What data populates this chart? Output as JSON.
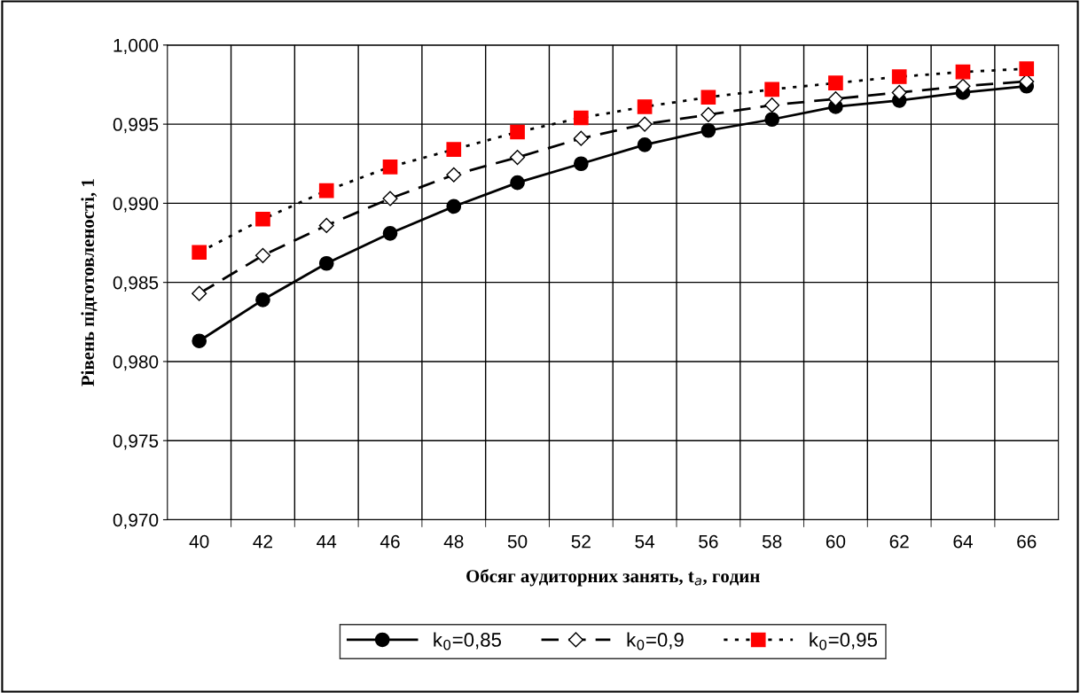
{
  "chart_data": {
    "type": "line",
    "xlabel": "Обсяг аудиторних занять, t$_{a}$, годин",
    "ylabel": "Рівень підготовленості, 1",
    "categories": [
      "40",
      "42",
      "44",
      "46",
      "48",
      "50",
      "52",
      "54",
      "56",
      "58",
      "60",
      "62",
      "64",
      "66"
    ],
    "ylim": [
      0.97,
      1.0
    ],
    "yticks": [
      {
        "value": 0.97,
        "label": "0,970"
      },
      {
        "value": 0.975,
        "label": "0,975"
      },
      {
        "value": 0.98,
        "label": "0,980"
      },
      {
        "value": 0.985,
        "label": "0,985"
      },
      {
        "value": 0.99,
        "label": "0,990"
      },
      {
        "value": 0.995,
        "label": "0,995"
      },
      {
        "value": 1.0,
        "label": "1,000"
      }
    ],
    "grid": true,
    "legend": "bottom",
    "series": [
      {
        "name": "k$_{0}$=0,85",
        "color": "#000000",
        "marker": "circle",
        "line_style": "solid",
        "values": [
          0.9813,
          0.9839,
          0.9862,
          0.9881,
          0.9898,
          0.9913,
          0.9925,
          0.9937,
          0.9946,
          0.9953,
          0.9961,
          0.9965,
          0.997,
          0.9974
        ]
      },
      {
        "name": "k$_{0}$=0,9",
        "color": "#000000",
        "marker": "diamond",
        "line_style": "dashed",
        "values": [
          0.9843,
          0.9867,
          0.9886,
          0.9903,
          0.9918,
          0.9929,
          0.9941,
          0.995,
          0.9956,
          0.9962,
          0.9966,
          0.997,
          0.9974,
          0.9977
        ]
      },
      {
        "name": "k$_{0}$=0,95",
        "color": "#ff0000",
        "marker": "square",
        "line_style": "dotted",
        "values": [
          0.9869,
          0.989,
          0.9908,
          0.9923,
          0.9934,
          0.9945,
          0.9954,
          0.9961,
          0.9967,
          0.9972,
          0.9976,
          0.998,
          0.9983,
          0.9985
        ]
      }
    ]
  }
}
